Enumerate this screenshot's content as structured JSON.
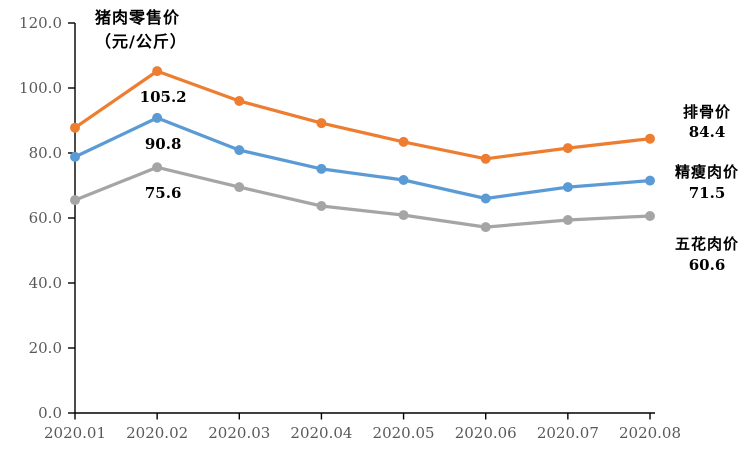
{
  "title": {
    "line1": "猪肉零售价",
    "line2": "（元/公斤）"
  },
  "chart_data": {
    "type": "line",
    "title": "猪肉零售价（元/公斤）",
    "x": [
      "2020.01",
      "2020.02",
      "2020.03",
      "2020.04",
      "2020.05",
      "2020.06",
      "2020.07",
      "2020.08"
    ],
    "series": [
      {
        "name": "排骨价",
        "color": "#ED7D31",
        "values": [
          87.8,
          105.2,
          96.0,
          89.2,
          83.4,
          78.2,
          81.5,
          84.4
        ],
        "end_label_name": "排骨价",
        "end_label_value": "84.4"
      },
      {
        "name": "精瘦肉价",
        "color": "#5B9BD5",
        "values": [
          78.8,
          90.8,
          80.9,
          75.1,
          71.7,
          66.0,
          69.5,
          71.5
        ],
        "end_label_name": "精瘦肉价",
        "end_label_value": "71.5"
      },
      {
        "name": "五花肉价",
        "color": "#A5A5A5",
        "values": [
          65.5,
          75.6,
          69.5,
          63.7,
          60.9,
          57.2,
          59.4,
          60.6
        ],
        "end_label_name": "五花肉价",
        "end_label_value": "60.6"
      }
    ],
    "point_labels": [
      {
        "series": 0,
        "index": 1,
        "text": "105.2"
      },
      {
        "series": 1,
        "index": 1,
        "text": "90.8"
      },
      {
        "series": 2,
        "index": 1,
        "text": "75.6"
      }
    ],
    "y_axis": {
      "ticks": [
        "0.0",
        "20.0",
        "40.0",
        "60.0",
        "80.0",
        "100.0",
        "120.0"
      ],
      "min": 0,
      "max": 120
    },
    "xlabel": "",
    "ylabel": "元/公斤",
    "grid": false,
    "legend_position": "right-of-last-point",
    "axis_color": "#000000",
    "tick_label_color": "#595959"
  }
}
